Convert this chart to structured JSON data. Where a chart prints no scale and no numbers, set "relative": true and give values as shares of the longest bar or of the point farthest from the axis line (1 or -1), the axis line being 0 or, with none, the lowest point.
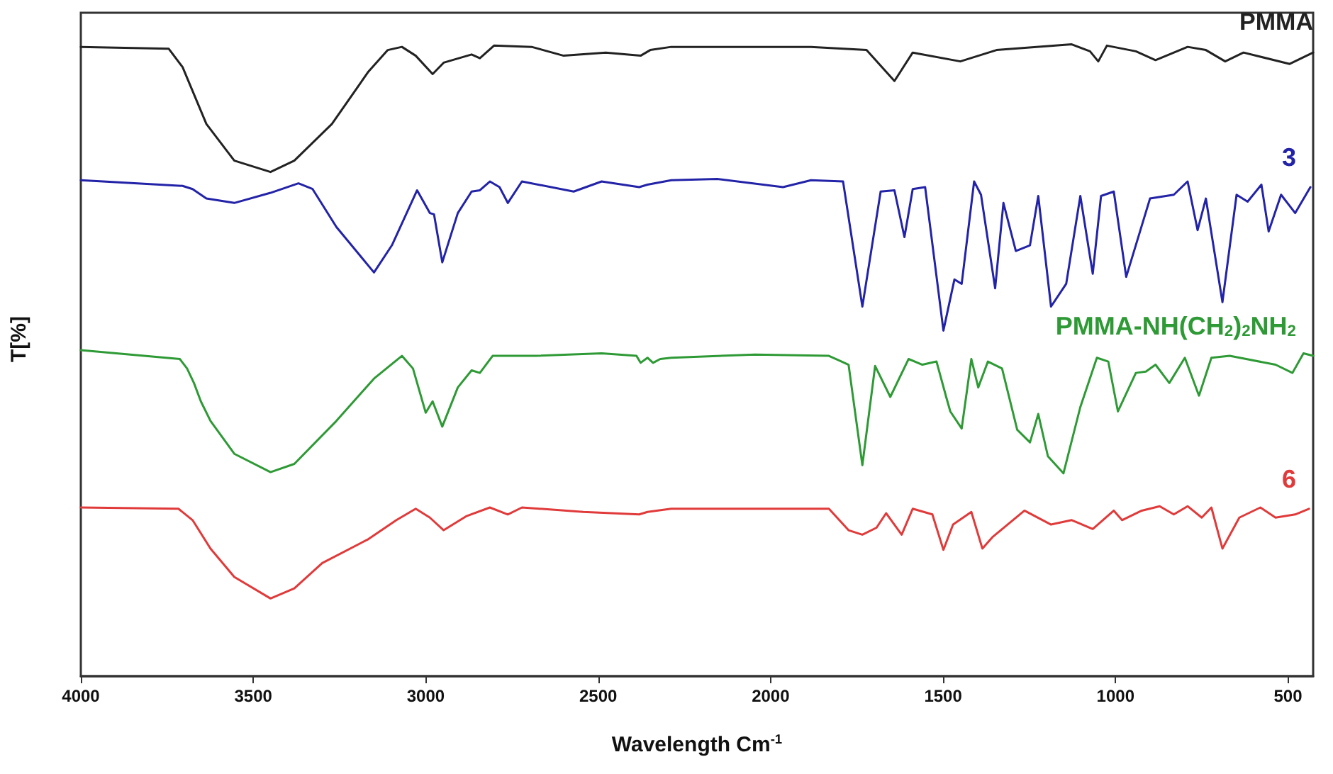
{
  "chart_data": {
    "type": "line",
    "xlabel": "Wavelength Cm$^{-1}$",
    "ylabel": "T[%]",
    "relative": true,
    "xlim": [
      4000,
      427
    ],
    "xticks": [
      4000,
      3500,
      3000,
      2500,
      2000,
      1500,
      1000,
      500
    ],
    "legend": false,
    "marker": "none",
    "line_style": "solid",
    "series": [
      {
        "name": "PMMA",
        "color": "#222222",
        "x": [
          4000,
          3745,
          3705,
          3636,
          3555,
          3450,
          3381,
          3272,
          3166,
          3110,
          3069,
          3029,
          2980,
          2948,
          2867,
          2843,
          2802,
          2693,
          2600,
          2478,
          2377,
          2349,
          2288,
          1883,
          1722,
          1641,
          1588,
          1450,
          1345,
          1127,
          1074,
          1050,
          1025,
          941,
          884,
          791,
          738,
          682,
          629,
          495,
          427
        ],
        "values": [
          0.996,
          0.993,
          0.964,
          0.874,
          0.816,
          0.798,
          0.816,
          0.874,
          0.957,
          0.991,
          0.996,
          0.982,
          0.953,
          0.971,
          0.984,
          0.978,
          0.998,
          0.996,
          0.982,
          0.987,
          0.982,
          0.991,
          0.996,
          0.996,
          0.991,
          0.942,
          0.987,
          0.973,
          0.991,
          1.0,
          0.989,
          0.973,
          0.998,
          0.989,
          0.975,
          0.996,
          0.991,
          0.973,
          0.987,
          0.969,
          0.987
        ]
      },
      {
        "name": "3",
        "color": "#2323a8",
        "x": [
          4000,
          3705,
          3676,
          3636,
          3555,
          3450,
          3369,
          3328,
          3259,
          3191,
          3150,
          3098,
          3025,
          2988,
          2976,
          2952,
          2907,
          2867,
          2843,
          2814,
          2786,
          2762,
          2721,
          2571,
          2490,
          2381,
          2357,
          2288,
          2155,
          1964,
          1883,
          1790,
          1734,
          1681,
          1641,
          1612,
          1588,
          1552,
          1499,
          1467,
          1446,
          1410,
          1390,
          1349,
          1325,
          1289,
          1248,
          1224,
          1187,
          1143,
          1102,
          1066,
          1042,
          1005,
          969,
          900,
          831,
          791,
          762,
          738,
          690,
          649,
          617,
          577,
          556,
          520,
          479,
          435
        ],
        "values": [
          0.785,
          0.776,
          0.771,
          0.756,
          0.749,
          0.765,
          0.78,
          0.771,
          0.711,
          0.666,
          0.639,
          0.682,
          0.769,
          0.733,
          0.731,
          0.655,
          0.733,
          0.767,
          0.769,
          0.783,
          0.774,
          0.749,
          0.783,
          0.767,
          0.783,
          0.774,
          0.778,
          0.785,
          0.787,
          0.774,
          0.785,
          0.783,
          0.585,
          0.767,
          0.769,
          0.695,
          0.771,
          0.774,
          0.547,
          0.628,
          0.621,
          0.783,
          0.762,
          0.614,
          0.749,
          0.673,
          0.682,
          0.76,
          0.585,
          0.621,
          0.76,
          0.637,
          0.76,
          0.767,
          0.632,
          0.756,
          0.762,
          0.783,
          0.706,
          0.756,
          0.592,
          0.762,
          0.751,
          0.778,
          0.704,
          0.762,
          0.733,
          0.774
        ]
      },
      {
        "name": "PMMA-NH(CH$_{2}$)$_{2}$NH$_{2}$",
        "color": "#2e9a35",
        "x": [
          4000,
          3713,
          3692,
          3672,
          3652,
          3624,
          3555,
          3450,
          3381,
          3259,
          3150,
          3069,
          3037,
          3000,
          2980,
          2952,
          2907,
          2867,
          2843,
          2806,
          2681,
          2490,
          2389,
          2377,
          2357,
          2341,
          2320,
          2288,
          2045,
          1831,
          1774,
          1734,
          1697,
          1653,
          1600,
          1560,
          1519,
          1491,
          1479,
          1446,
          1418,
          1398,
          1370,
          1329,
          1285,
          1248,
          1224,
          1196,
          1151,
          1102,
          1054,
          1021,
          993,
          941,
          912,
          884,
          844,
          799,
          758,
          722,
          669,
          536,
          487,
          455,
          427
        ],
        "values": [
          0.516,
          0.502,
          0.487,
          0.464,
          0.435,
          0.404,
          0.352,
          0.323,
          0.336,
          0.404,
          0.471,
          0.507,
          0.487,
          0.417,
          0.435,
          0.395,
          0.457,
          0.484,
          0.48,
          0.507,
          0.507,
          0.511,
          0.507,
          0.496,
          0.504,
          0.496,
          0.502,
          0.504,
          0.509,
          0.507,
          0.493,
          0.334,
          0.491,
          0.442,
          0.502,
          0.493,
          0.498,
          0.442,
          0.419,
          0.392,
          0.502,
          0.457,
          0.498,
          0.487,
          0.39,
          0.37,
          0.415,
          0.348,
          0.321,
          0.426,
          0.504,
          0.498,
          0.419,
          0.48,
          0.482,
          0.493,
          0.464,
          0.504,
          0.444,
          0.504,
          0.507,
          0.493,
          0.48,
          0.511,
          0.507
        ]
      },
      {
        "name": "6",
        "color": "#e03a3a",
        "x": [
          4000,
          3717,
          3676,
          3624,
          3555,
          3450,
          3381,
          3300,
          3166,
          3085,
          3029,
          2988,
          2948,
          2883,
          2814,
          2762,
          2721,
          2543,
          2381,
          2357,
          2288,
          1831,
          1774,
          1734,
          1693,
          1665,
          1620,
          1588,
          1531,
          1499,
          1471,
          1418,
          1386,
          1357,
          1264,
          1187,
          1127,
          1066,
          1005,
          981,
          924,
          872,
          831,
          791,
          750,
          722,
          690,
          641,
          580,
          536,
          479,
          439
        ],
        "values": [
          0.267,
          0.265,
          0.247,
          0.202,
          0.157,
          0.123,
          0.139,
          0.179,
          0.217,
          0.247,
          0.265,
          0.251,
          0.231,
          0.253,
          0.267,
          0.256,
          0.267,
          0.26,
          0.256,
          0.26,
          0.265,
          0.265,
          0.231,
          0.224,
          0.235,
          0.258,
          0.224,
          0.265,
          0.256,
          0.2,
          0.24,
          0.26,
          0.202,
          0.22,
          0.262,
          0.24,
          0.247,
          0.233,
          0.262,
          0.247,
          0.262,
          0.269,
          0.256,
          0.269,
          0.251,
          0.267,
          0.202,
          0.251,
          0.267,
          0.251,
          0.256,
          0.265
        ]
      }
    ]
  }
}
